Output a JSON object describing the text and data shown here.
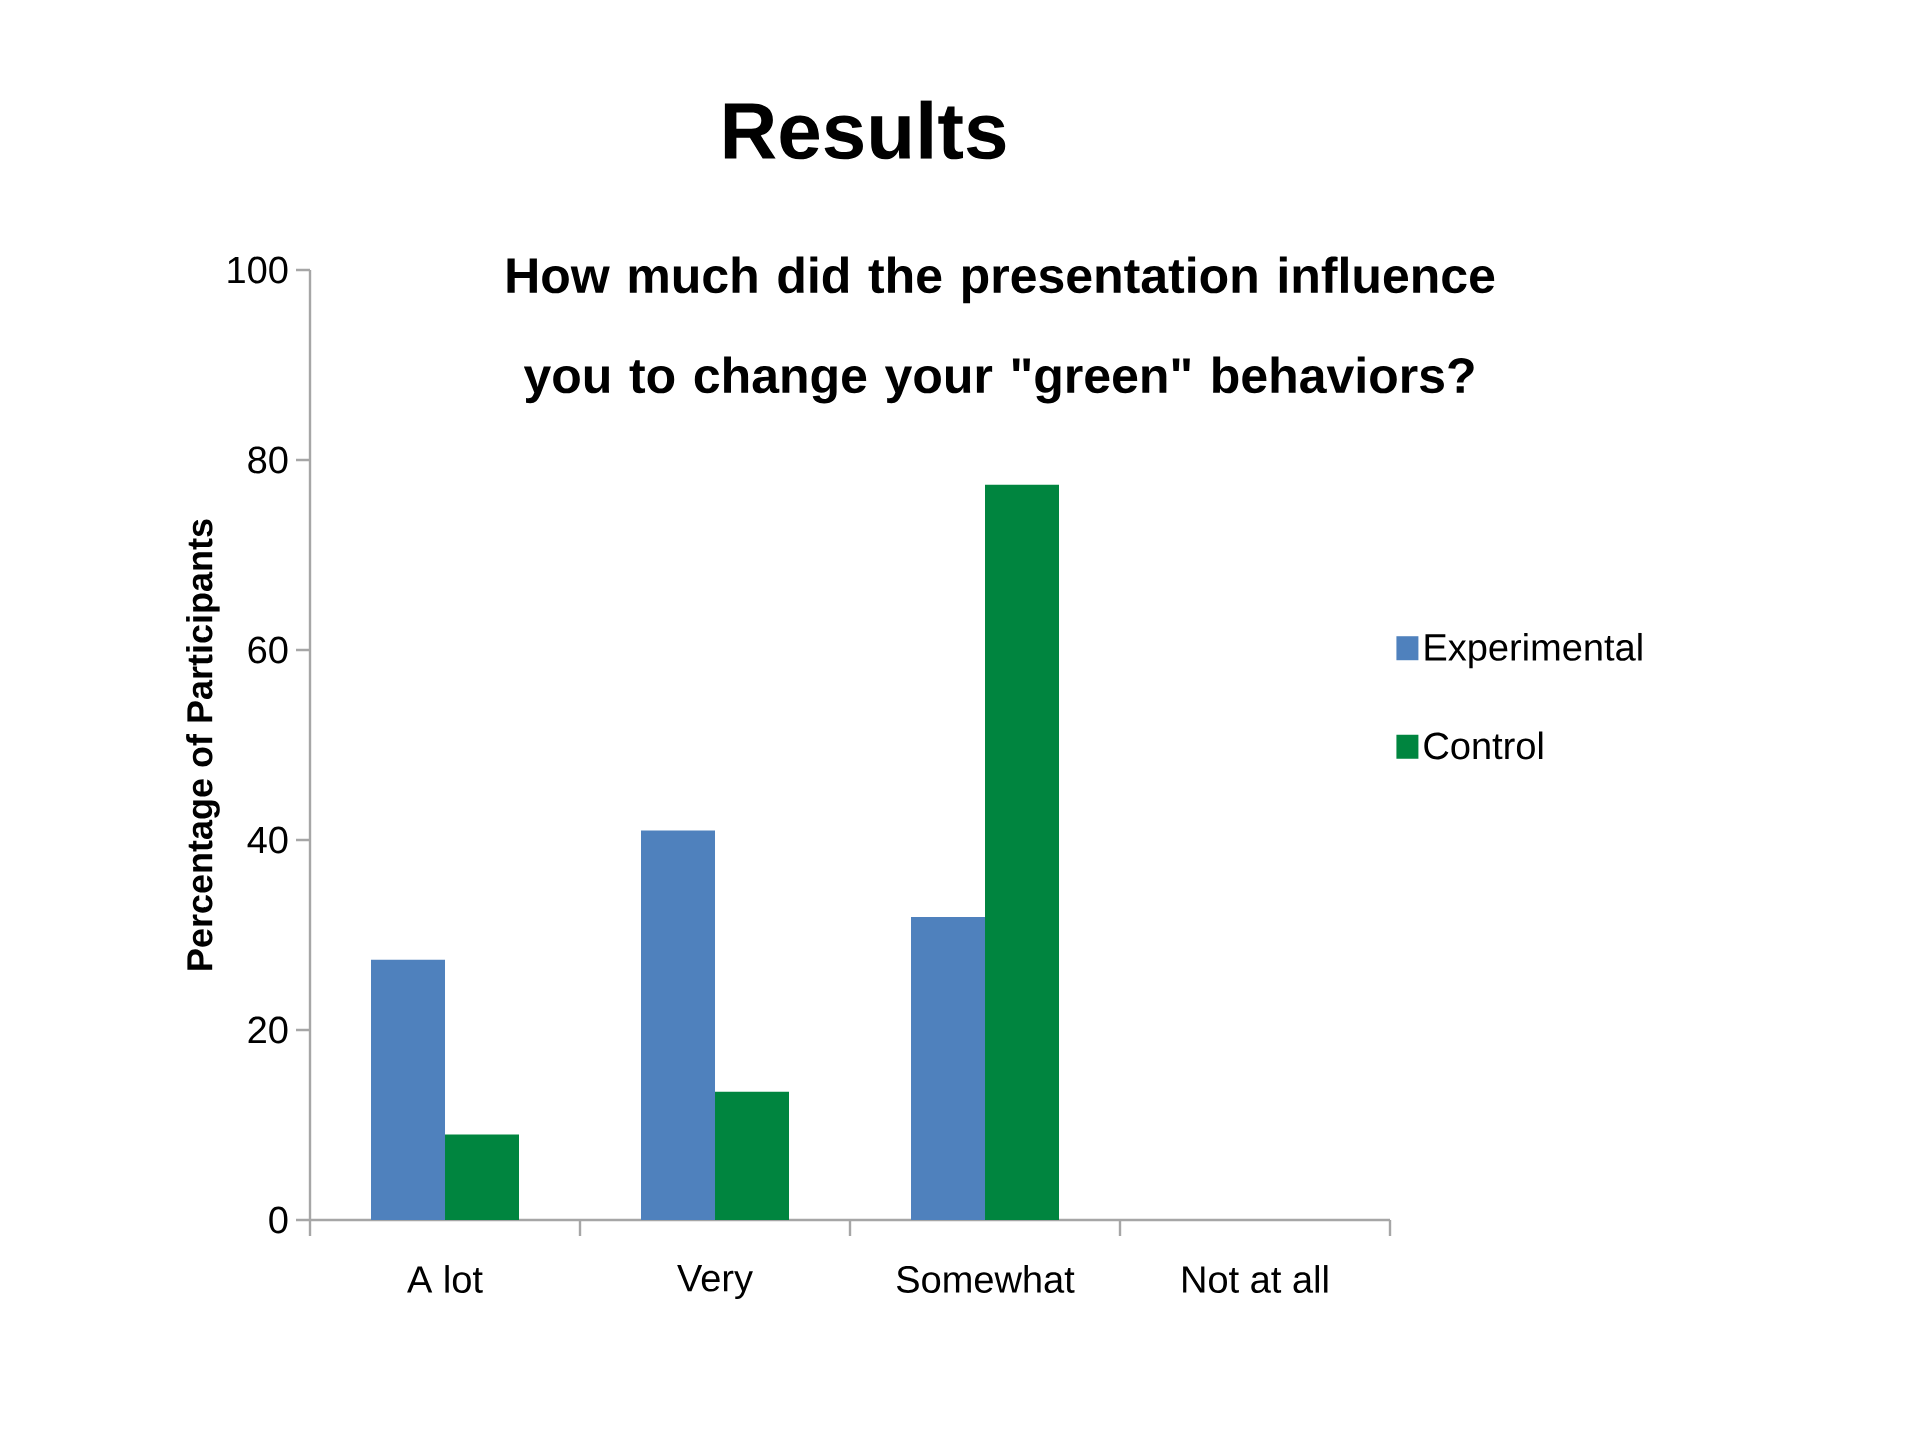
{
  "chart_data": {
    "type": "bar",
    "title": "Results",
    "subtitle": "How much did the presentation influence you to change your \"green\" behaviors?",
    "ylabel": "Percentage of Participants",
    "categories": [
      "A lot",
      "Very",
      "Somewhat",
      "Not at all"
    ],
    "series": [
      {
        "name": "Experimental",
        "color": "#4f81bd",
        "values": [
          27.4,
          41,
          31.9,
          0
        ]
      },
      {
        "name": "Control",
        "color": "#00853f",
        "values": [
          9,
          13.5,
          77.4,
          0
        ]
      }
    ],
    "ylim": [
      0,
      100
    ],
    "yticks": [
      0,
      20,
      40,
      60,
      80,
      100
    ],
    "legend": "right",
    "grid": false
  }
}
